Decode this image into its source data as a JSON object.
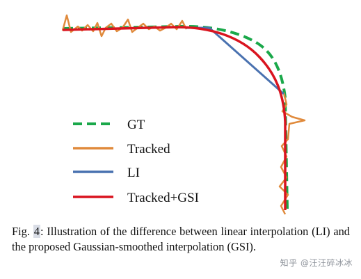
{
  "figure": {
    "legend": [
      {
        "label": "GT",
        "color": "#1aa84a",
        "dashed": true
      },
      {
        "label": "Tracked",
        "color": "#e08a3c",
        "dashed": false
      },
      {
        "label": "LI",
        "color": "#4a72b0",
        "dashed": false
      },
      {
        "label": "Tracked+GSI",
        "color": "#d9141f",
        "dashed": false
      }
    ]
  },
  "caption": {
    "prefix": "Fig. ",
    "fig_number": "4",
    "text": ": Illustration of the difference between linear interpolation (LI) and the proposed Gaussian-smoothed interpolation (GSI)."
  },
  "watermark": "知乎 @汪汪碎冰冰"
}
